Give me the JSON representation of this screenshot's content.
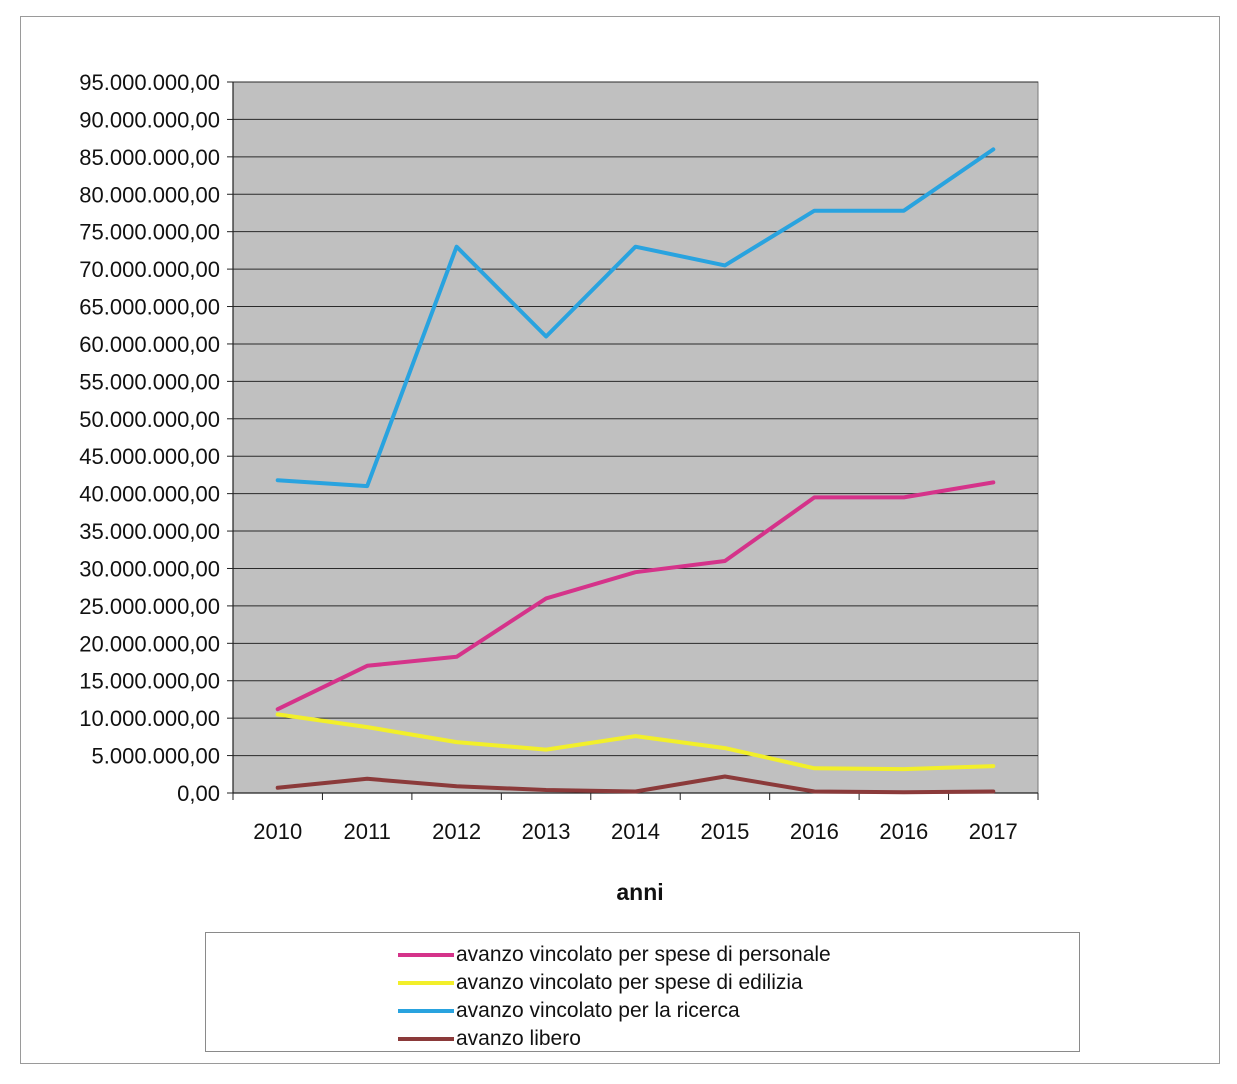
{
  "chart_data": {
    "type": "line",
    "title": "",
    "xlabel": "anni",
    "ylabel": "",
    "categories": [
      "2010",
      "2011",
      "2012",
      "2013",
      "2014",
      "2015",
      "2016",
      "2016",
      "2017"
    ],
    "ylim": [
      0,
      95000000
    ],
    "ytick_step": 5000000,
    "ytick_labels": [
      "0,00",
      "5.000.000,00",
      "10.000.000,00",
      "15.000.000,00",
      "20.000.000,00",
      "25.000.000,00",
      "30.000.000,00",
      "35.000.000,00",
      "40.000.000,00",
      "45.000.000,00",
      "50.000.000,00",
      "55.000.000,00",
      "60.000.000,00",
      "65.000.000,00",
      "70.000.000,00",
      "75.000.000,00",
      "80.000.000,00",
      "85.000.000,00",
      "90.000.000,00",
      "95.000.000,00"
    ],
    "grid": true,
    "plot_background": "#c0c0c0",
    "legend_position": "bottom",
    "series": [
      {
        "name": "avanzo vincolato per spese di personale",
        "color": "#d5338a",
        "values": [
          11200000,
          17000000,
          18200000,
          26000000,
          29500000,
          31000000,
          39500000,
          39500000,
          41500000
        ]
      },
      {
        "name": "avanzo vincolato per spese di edilizia",
        "color": "#f2ef2a",
        "values": [
          10500000,
          8800000,
          6800000,
          5800000,
          7600000,
          6000000,
          3300000,
          3200000,
          3600000
        ]
      },
      {
        "name": "avanzo vincolato per la ricerca",
        "color": "#29a3df",
        "values": [
          41800000,
          41000000,
          73000000,
          61000000,
          73000000,
          70500000,
          77800000,
          77800000,
          86000000
        ]
      },
      {
        "name": "avanzo libero",
        "color": "#8b3a3a",
        "values": [
          700000,
          1900000,
          900000,
          400000,
          200000,
          2200000,
          200000,
          100000,
          200000
        ]
      }
    ]
  }
}
